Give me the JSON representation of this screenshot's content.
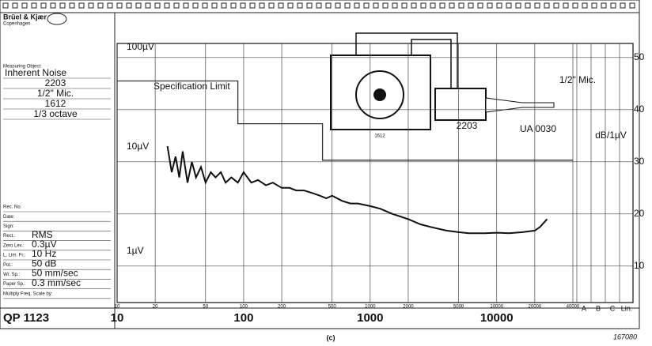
{
  "chart_data": {
    "type": "line",
    "brand": "Brüel & Kjær",
    "brand_sub": "Copenhagen",
    "measuring_object_label": "Measuring Object:",
    "measuring_object": [
      "Inherent Noise",
      "2203",
      "1/2\" Mic.",
      "1612",
      "1/3 octave"
    ],
    "form_fields": [
      {
        "label": "Rec. No."
      },
      {
        "label": "Date:"
      },
      {
        "label": "Sign:"
      },
      {
        "label": "Rect.:",
        "value": "RMS"
      },
      {
        "label": "Zero Lev.:",
        "value": "0.3µV"
      },
      {
        "label": "L. Lim. Fr.:",
        "value": "10 Hz"
      },
      {
        "label": "Pot.:",
        "value": "50 dB"
      },
      {
        "label": "Wr. Sp.:",
        "value": "50 mm/sec"
      },
      {
        "label": "Paper Sp.:",
        "value": "0.3 mm/sec"
      },
      {
        "label": "Multiply Freq. Scale by:"
      }
    ],
    "paper_code": "QP 1123",
    "caption": "(c)",
    "figure_id": "167080",
    "annotation": "Specification Limit",
    "y_unit_label": "dB/1µV",
    "left_scale_labels": [
      "100µV",
      "10µV",
      "1µV"
    ],
    "instruments": [
      "1612",
      "2203",
      "UA 0030",
      "1/2\" Mic."
    ],
    "filter_labels": [
      "A",
      "B",
      "C",
      "Lin."
    ],
    "xscale": "log",
    "xlim": [
      10,
      40000
    ],
    "xticks": [
      10,
      20,
      50,
      100,
      200,
      500,
      1000,
      2000,
      5000,
      10000,
      20000,
      40000
    ],
    "decade_labels": [
      10,
      100,
      1000,
      10000
    ],
    "ylim": [
      3,
      52.7
    ],
    "yticks": [
      10,
      20,
      30,
      40,
      50
    ],
    "grid": true,
    "series": [
      {
        "color": "#111111",
        "x": [
          25,
          27,
          29,
          31,
          33,
          36,
          39,
          42,
          46,
          50,
          55,
          60,
          66,
          72,
          80,
          90,
          100,
          115,
          130,
          150,
          170,
          200,
          230,
          260,
          300,
          350,
          400,
          450,
          500,
          600,
          700,
          800,
          1000,
          1200,
          1500,
          2000,
          2500,
          3000,
          4000,
          5000,
          6000,
          8000,
          10000,
          12500,
          16000,
          20000,
          22000,
          25000
        ],
        "values": [
          33,
          28,
          31,
          27,
          32,
          26,
          30,
          27,
          29,
          26,
          28,
          27,
          28,
          26,
          27,
          26,
          28,
          26,
          26.5,
          25.5,
          26,
          25,
          25,
          24.5,
          24.5,
          24,
          23.5,
          23,
          23.5,
          22.5,
          22,
          22,
          21.5,
          21,
          20,
          19,
          18,
          17.5,
          16.8,
          16.5,
          16.3,
          16.3,
          16.4,
          16.3,
          16.5,
          16.8,
          17.5,
          19
        ]
      },
      {
        "color": "#333333",
        "x": [
          10,
          90,
          90,
          420,
          420,
          40000
        ],
        "values": [
          45.5,
          45.5,
          37.3,
          37.3,
          30.3,
          30.3
        ]
      }
    ]
  }
}
